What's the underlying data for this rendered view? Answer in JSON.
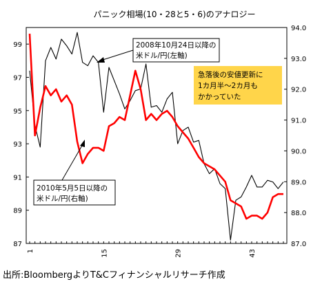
{
  "chart_data": {
    "type": "line",
    "title": "パニック相場(10・28と5・6)のアナロジー",
    "source": "出所:BloombergよりT&Cフィナンシャルリサーチ作成",
    "x": [
      1,
      2,
      3,
      4,
      5,
      6,
      7,
      8,
      9,
      10,
      11,
      12,
      13,
      14,
      15,
      16,
      17,
      18,
      19,
      20,
      21,
      22,
      23,
      24,
      25,
      26,
      27,
      28,
      29,
      30,
      31,
      32,
      33,
      34,
      35,
      36,
      37,
      38,
      39,
      40,
      41,
      42,
      43,
      44,
      45,
      46,
      47,
      48,
      49
    ],
    "x_ticks": [
      "1",
      "15",
      "29",
      "43"
    ],
    "left_axis": {
      "ylim": [
        87,
        100
      ],
      "ticks": [
        "87",
        "89",
        "91",
        "93",
        "95",
        "97",
        "99"
      ]
    },
    "right_axis": {
      "ylim": [
        87.0,
        94.0
      ],
      "ticks": [
        "87.0",
        "88.0",
        "89.0",
        "90.0",
        "91.0",
        "92.0",
        "93.0",
        "94.0"
      ]
    },
    "grid": false,
    "series": [
      {
        "name": "2008年10月24日以降の米ドル/円(左軸)",
        "axis": "left",
        "color": "#000000",
        "values": [
          97.4,
          94.1,
          92.8,
          98.0,
          98.8,
          98.1,
          99.3,
          98.9,
          98.4,
          99.7,
          97.9,
          97.7,
          98.3,
          97.9,
          94.9,
          97.6,
          96.8,
          96.0,
          95.1,
          95.6,
          96.2,
          96.3,
          97.8,
          95.2,
          95.3,
          94.9,
          95.7,
          96.1,
          93.0,
          93.8,
          94.0,
          93.1,
          93.2,
          91.8,
          91.2,
          91.5,
          90.6,
          90.3,
          87.2,
          89.6,
          89.8,
          90.4,
          91.1,
          90.4,
          90.4,
          90.8,
          90.7,
          90.3,
          90.7
        ]
      },
      {
        "name": "2010年5月5日以降の米ドル/円(右軸)",
        "axis": "right",
        "color": "#ff0000",
        "values": [
          93.8,
          90.5,
          91.4,
          92.1,
          91.8,
          92.0,
          91.6,
          91.8,
          91.5,
          90.3,
          89.6,
          89.9,
          90.1,
          90.1,
          90.0,
          90.8,
          90.9,
          91.1,
          91.0,
          91.8,
          92.6,
          92.0,
          91.0,
          91.2,
          91.0,
          91.2,
          91.3,
          91.1,
          90.8,
          90.6,
          90.4,
          90.1,
          89.8,
          89.6,
          89.5,
          89.4,
          89.2,
          89.0,
          88.4,
          88.3,
          88.2,
          87.8,
          87.9,
          87.9,
          87.8,
          88.0,
          88.5,
          88.6,
          88.6
        ]
      }
    ],
    "annotations": {
      "label_2008": [
        "2008年10月24日以降の",
        "米ドル/円(左軸)"
      ],
      "label_2010": [
        "2010年5月5日以降の",
        "米ドル/円(右軸)"
      ],
      "note": [
        "急落後の安値更新に",
        "1カ月半〜2カ月も",
        "かかっていた"
      ],
      "note_bg": "#ffd54a"
    }
  }
}
